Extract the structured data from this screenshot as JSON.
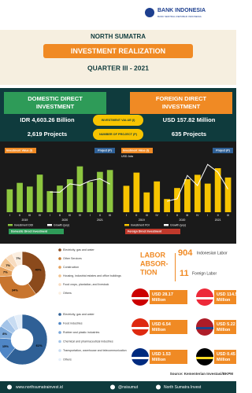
{
  "header": {
    "logo": "BANK INDONESIA",
    "logo_sub": "BANK SENTRAL REPUBLIK INDONESIA"
  },
  "title": {
    "region": "NORTH SUMATRA",
    "main": "INVESTMENT REALIZATION",
    "period": "QUARTER III - 2021"
  },
  "summary": {
    "domestic_title": "DOMESTIC DIRECT INVESTMENT",
    "foreign_title": "FOREIGN DIRECT INVESTMENT",
    "value_label": "INVESTMENT VALUE (I)",
    "project_label": "NUMBER OF PROJECT (P)",
    "domestic_value": "IDR 4,603.26 Billion",
    "foreign_value": "USD 157.82 Million",
    "domestic_projects": "2,619 Projects",
    "foreign_projects": "635 Projects"
  },
  "chart_data": [
    {
      "type": "bar",
      "title": "Investment Value (I)",
      "title2": "Project (P)",
      "footer": "Domestic Direct Investment",
      "categories": [
        "I",
        "II",
        "III",
        "IV",
        "I",
        "II",
        "III",
        "IV",
        "I",
        "II",
        "III"
      ],
      "years": [
        "2019",
        "2020",
        "2021"
      ],
      "series": [
        {
          "name": "Investment DDI",
          "color": "#8dc63f",
          "values": [
            2500,
            3200,
            2800,
            4100,
            2300,
            2900,
            3600,
            5000,
            3300,
            4400,
            4603.26
          ]
        },
        {
          "name": "Growth (yoy)",
          "color": "#ffffff",
          "axis": "y2",
          "values": [
            null,
            null,
            null,
            null,
            -8,
            -9,
            29,
            22,
            43,
            52,
            28
          ]
        }
      ],
      "ylim": [
        0,
        6000
      ],
      "y2lim": [
        -100,
        150
      ]
    },
    {
      "type": "bar",
      "title": "Investment Value (I)",
      "title2": "Project (P)",
      "unit": "USD Juta",
      "footer": "Foreign Direct Investment",
      "categories": [
        "I",
        "II",
        "III",
        "IV",
        "I",
        "II",
        "III",
        "IV",
        "I",
        "II",
        "III"
      ],
      "years": [
        "2019",
        "2020",
        "2021"
      ],
      "series": [
        {
          "name": "Investment FDI",
          "color": "#f7c400",
          "values": [
            120,
            180,
            90,
            140,
            60,
            110,
            150,
            170,
            130,
            200,
            157.82
          ]
        },
        {
          "name": "Growth (yoy)",
          "color": "#ffffff",
          "axis": "y2",
          "values": [
            null,
            null,
            null,
            null,
            -50,
            -39,
            67,
            21,
            117,
            82,
            5
          ]
        }
      ],
      "ylim": [
        0,
        250
      ],
      "y2lim": [
        -100,
        150
      ]
    },
    {
      "type": "pie",
      "categories": [
        "Electricity, gas and water",
        "Other Services",
        "Construction",
        "Housing, industrial estates and office buildings",
        "Food crops, plantation, and livestock",
        "Others"
      ],
      "values": [
        40,
        34,
        7,
        7,
        5,
        7
      ],
      "value_labels": [
        "40%",
        "34%",
        "7%",
        "7%",
        "5%",
        "7%"
      ],
      "colors": [
        "#8b4a1c",
        "#c8752e",
        "#e6a15c",
        "#f2c38f",
        "#f8dcc0",
        "#fbeee0"
      ]
    },
    {
      "type": "pie",
      "categories": [
        "Electricity, gas and water",
        "Food industries",
        "Rubber and plastic industries",
        "Chemical and pharmaceutical industries",
        "Transportation, warehouse and telecommunication",
        "Others"
      ],
      "values": [
        61,
        15,
        8,
        6,
        5,
        5
      ],
      "value_labels": [
        "61%",
        "15%",
        "8%",
        "6%",
        "5%",
        "5%"
      ],
      "colors": [
        "#2f6096",
        "#4f86c6",
        "#7aa7d9",
        "#a4c4e8",
        "#c8dcf2",
        "#e4eef9"
      ]
    }
  ],
  "labor": {
    "lines": [
      "LABOR",
      "ABSOR-",
      "TION"
    ],
    "indonesian_count": "904",
    "indonesian_label": "Indonesian Labor",
    "foreign_count": "11",
    "foreign_label": "Foreign Labor"
  },
  "countries": [
    {
      "value": "USD 28.17 Million"
    },
    {
      "value": "USD 114.52 Million"
    },
    {
      "value": "USD 6.54 Million"
    },
    {
      "value": "USD 5.22 Million"
    },
    {
      "value": "USD 1.53 Million"
    },
    {
      "value": "USD 0.45 Million"
    }
  ],
  "source": "Source: Kementerian Investasi/BKPM",
  "footer": {
    "website": "www.northsumatrainvest.id",
    "instagram": "@nsisumut",
    "facebook": "North Sumatra Invest"
  }
}
